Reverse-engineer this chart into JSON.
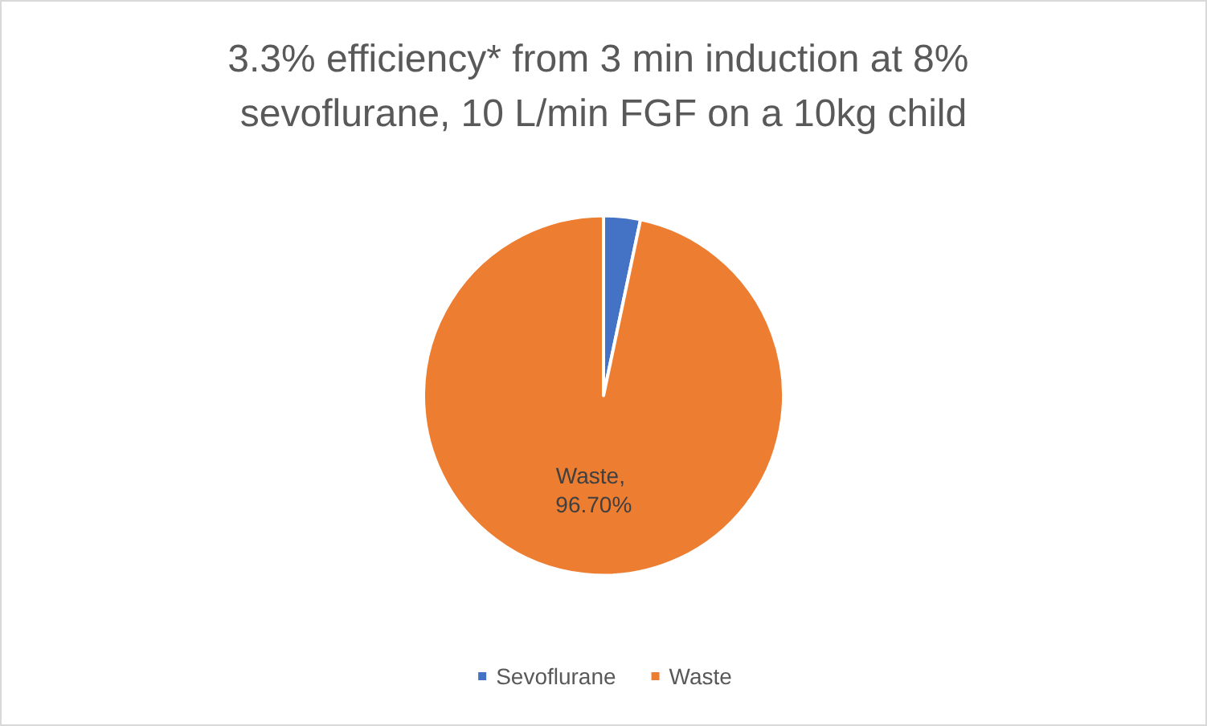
{
  "chart_data": {
    "type": "pie",
    "title": "3.3% efficiency* from 3 min induction at 8% sevoflurane, 10 L/min FGF on a 10kg child",
    "categories": [
      "Sevoflurane",
      "Waste"
    ],
    "values": [
      3.3,
      96.7
    ],
    "colors": [
      "#4472c4",
      "#ed7d31"
    ],
    "value_labels": [
      null,
      "Waste, 96.70%"
    ],
    "legend": "bottom"
  }
}
